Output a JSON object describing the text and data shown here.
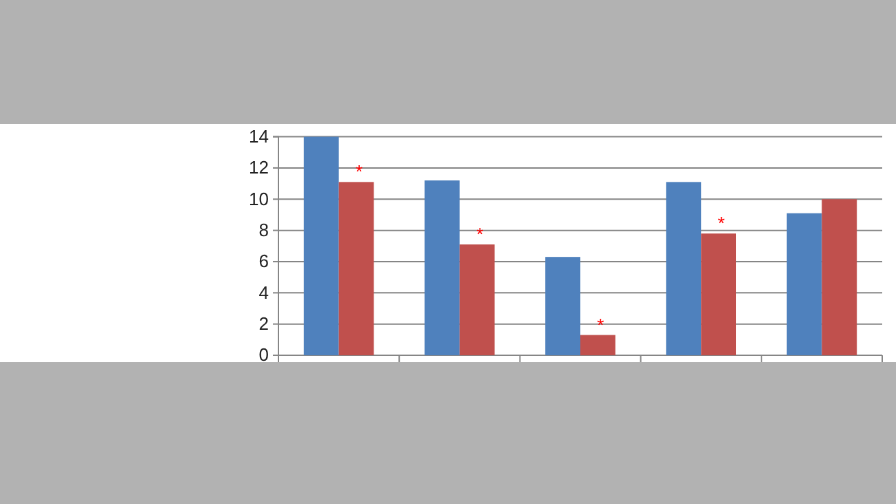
{
  "chart_data": {
    "type": "bar",
    "categories": [
      null,
      null,
      null,
      null,
      null
    ],
    "series": [
      {
        "color": "#4f81bd",
        "values": [
          14,
          11.2,
          6.3,
          11.1,
          9.1
        ]
      },
      {
        "color": "#c0504d",
        "values": [
          11.1,
          7.1,
          1.3,
          7.8,
          10
        ]
      }
    ],
    "ylim": [
      0,
      14
    ],
    "yticks": [
      0,
      2,
      4,
      6,
      8,
      10,
      12,
      14
    ],
    "grid": "y",
    "annotations": [
      "*",
      "*",
      "*",
      "*"
    ]
  }
}
